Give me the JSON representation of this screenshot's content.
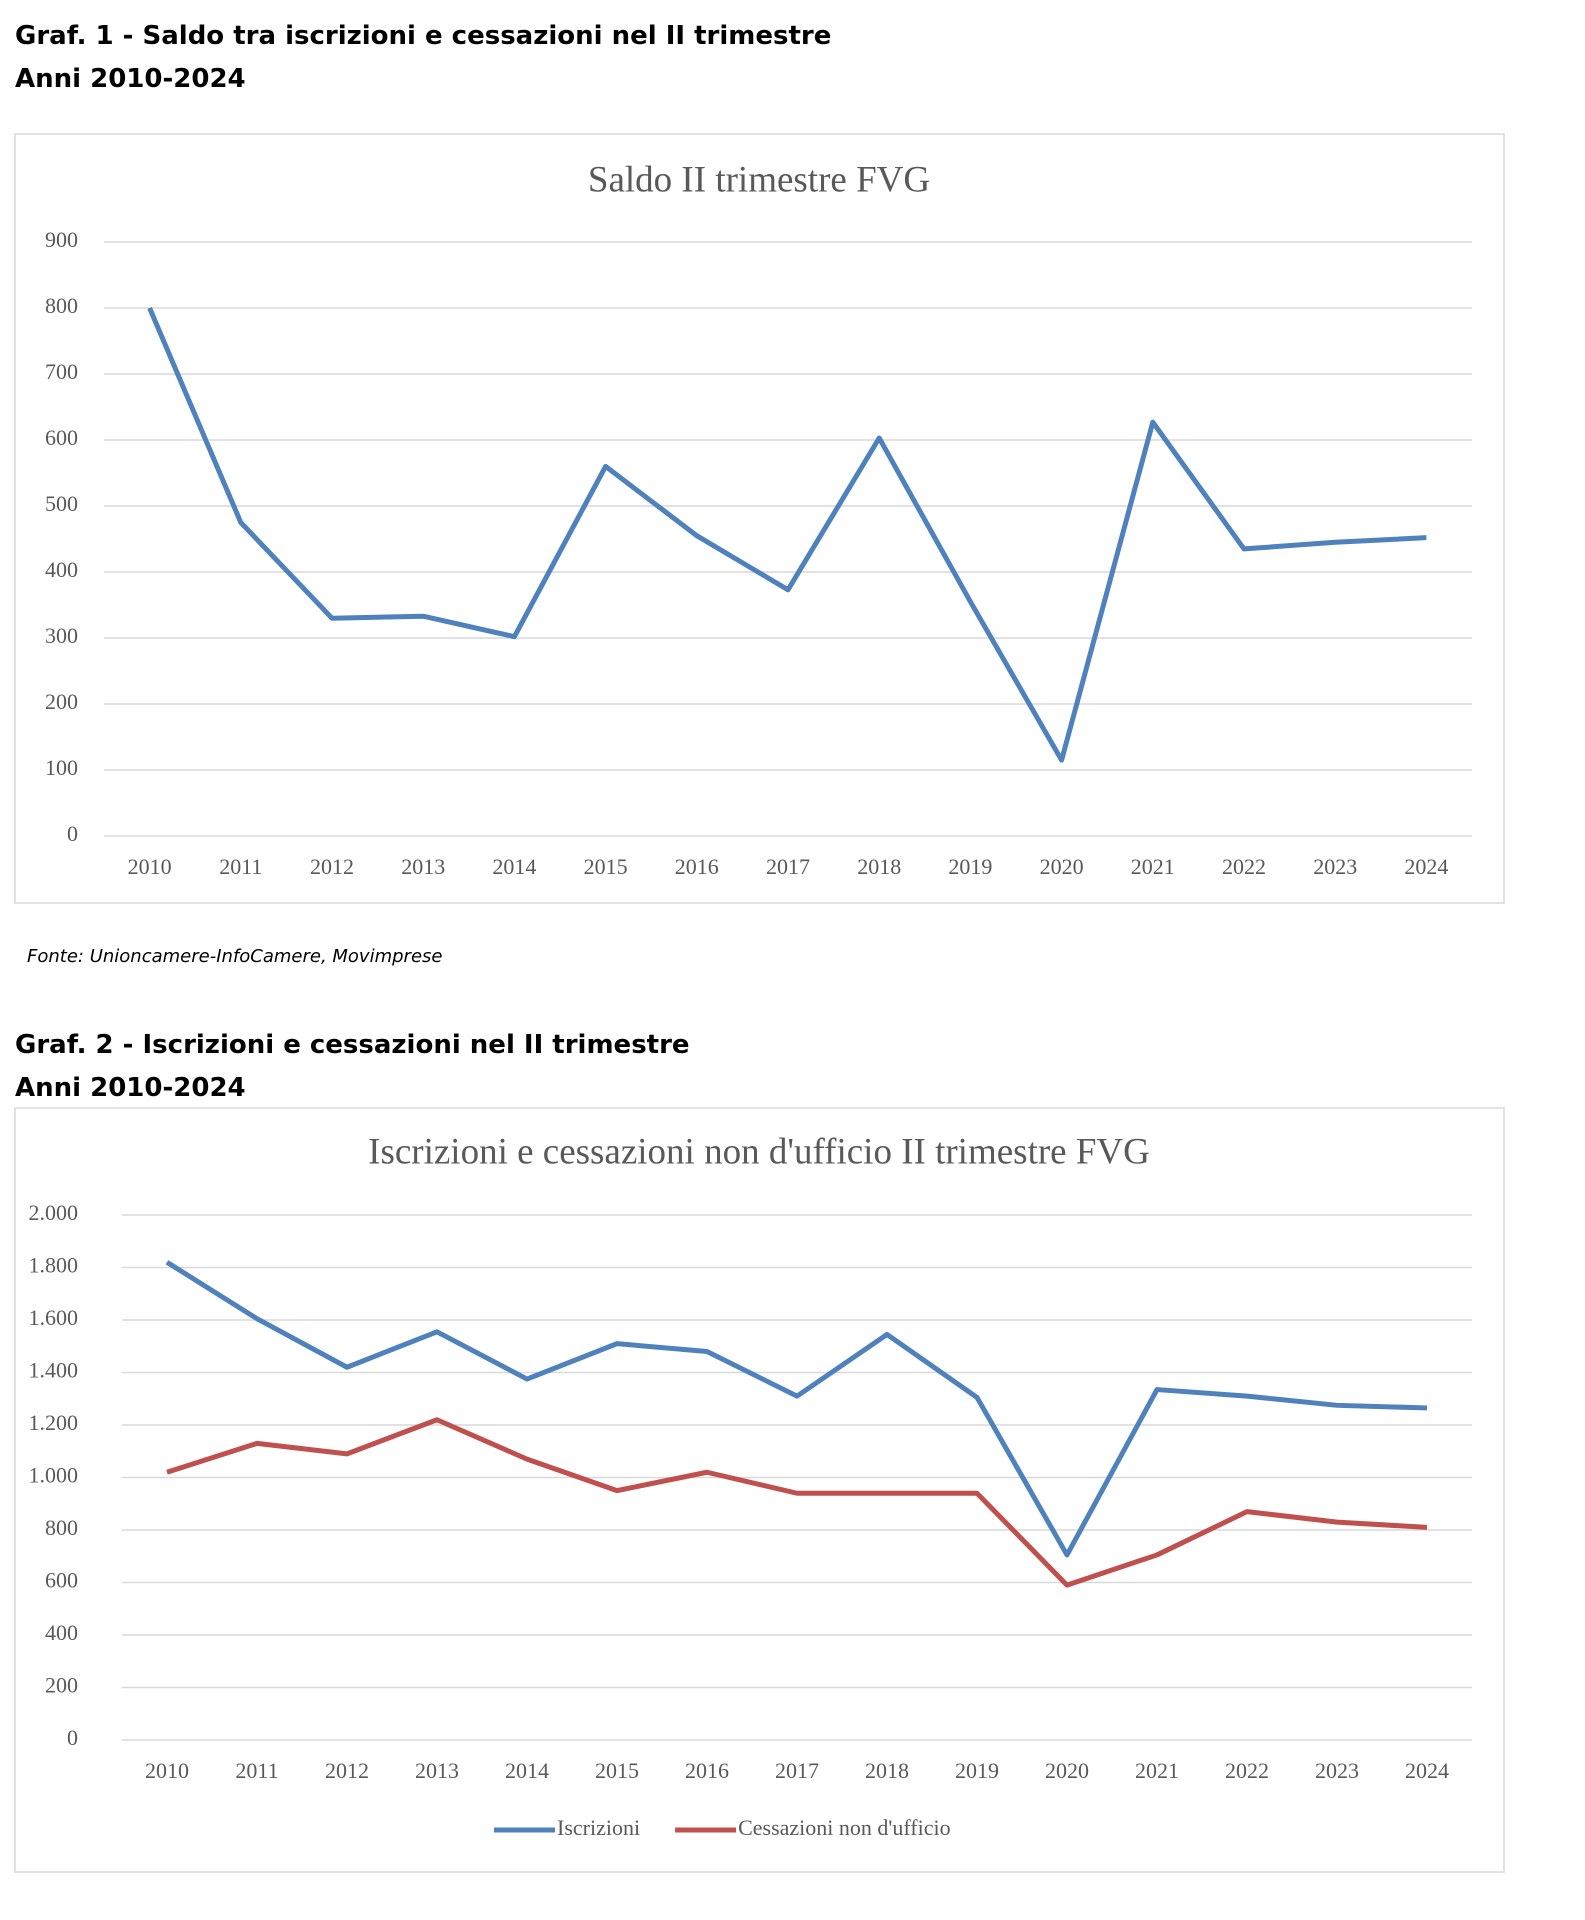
{
  "source": "Fonte: Unioncamere-InfoCamere, Movimprese",
  "chart_data": [
    {
      "type": "line",
      "heading": "Graf. 1 - Saldo tra iscrizioni e cessazioni nel II trimestre",
      "subheading": "Anni 2010-2024",
      "title": "Saldo II trimestre FVG",
      "categories": [
        "2010",
        "2011",
        "2012",
        "2013",
        "2014",
        "2015",
        "2016",
        "2017",
        "2018",
        "2019",
        "2020",
        "2021",
        "2022",
        "2023",
        "2024"
      ],
      "values": [
        800,
        475,
        330,
        333,
        302,
        560,
        455,
        373,
        603,
        355,
        115,
        627,
        435,
        445,
        452
      ],
      "color": "#4f81bd",
      "ylim": [
        0,
        900
      ],
      "yticks": [
        0,
        100,
        200,
        300,
        400,
        500,
        600,
        700,
        800,
        900
      ],
      "grid": true
    },
    {
      "type": "line",
      "heading": "Graf. 2 - Iscrizioni e cessazioni nel II trimestre",
      "subheading": "Anni 2010-2024",
      "title": "Iscrizioni e cessazioni non d'ufficio II trimestre FVG",
      "categories": [
        "2010",
        "2011",
        "2012",
        "2013",
        "2014",
        "2015",
        "2016",
        "2017",
        "2018",
        "2019",
        "2020",
        "2021",
        "2022",
        "2023",
        "2024"
      ],
      "series": [
        {
          "name": "Iscrizioni",
          "color": "#4f81bd",
          "values": [
            1820,
            1605,
            1420,
            1555,
            1375,
            1510,
            1480,
            1310,
            1545,
            1305,
            705,
            1335,
            1310,
            1275,
            1265
          ]
        },
        {
          "name": "Cessazioni non d'ufficio",
          "color": "#c0504d",
          "values": [
            1020,
            1130,
            1090,
            1220,
            1070,
            950,
            1020,
            940,
            940,
            940,
            590,
            705,
            870,
            830,
            810
          ]
        }
      ],
      "ylim": [
        0,
        2000
      ],
      "yticks": [
        0,
        200,
        400,
        600,
        800,
        {
          "value": 1000,
          "label": "1.000"
        },
        {
          "value": 1200,
          "label": "1.200"
        },
        {
          "value": 1400,
          "label": "1.400"
        },
        {
          "value": 1600,
          "label": "1.600"
        },
        {
          "value": 1800,
          "label": "1.800"
        },
        {
          "value": 2000,
          "label": "2.000"
        }
      ],
      "grid": true,
      "legend": "bottom"
    }
  ]
}
